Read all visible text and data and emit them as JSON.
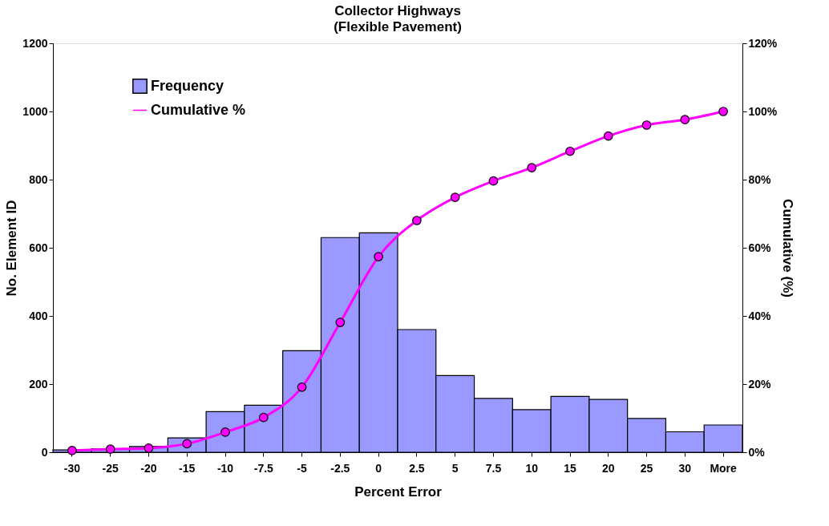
{
  "chart_data": {
    "type": "bar",
    "title": "Collector Highways",
    "subtitle": "(Flexible Pavement)",
    "xlabel": "Percent Error",
    "ylabel": "No. Element ID",
    "y2label": "Cumulative (%)",
    "categories": [
      "-30",
      "-25",
      "-20",
      "-15",
      "-10",
      "-7.5",
      "-5",
      "-2.5",
      "0",
      "2.5",
      "5",
      "7.5",
      "10",
      "15",
      "20",
      "25",
      "30",
      "More"
    ],
    "series": [
      {
        "name": "Frequency",
        "color": "#9999ff",
        "values": [
          7,
          10,
          17,
          42,
          119,
          138,
          298,
          630,
          644,
          360,
          225,
          158,
          125,
          164,
          155,
          99,
          60,
          80
        ]
      },
      {
        "name": "Cumulative %",
        "type": "line",
        "axis": "y2",
        "color": "#ff00ff",
        "marker": "circle",
        "values": [
          0.5,
          0.9,
          1.2,
          2.5,
          5.9,
          10.2,
          19.1,
          38.1,
          57.4,
          68.0,
          74.8,
          79.6,
          83.5,
          88.3,
          92.8,
          96.0,
          97.6,
          100
        ]
      }
    ],
    "ylim": [
      0,
      1200
    ],
    "yticks": [
      0,
      200,
      400,
      600,
      800,
      1000,
      1200
    ],
    "y2lim": [
      0,
      120
    ],
    "y2ticks": [
      {
        "value": 0,
        "label": "0%"
      },
      {
        "value": 20,
        "label": "20%"
      },
      {
        "value": 40,
        "label": "40%"
      },
      {
        "value": 60,
        "label": "60%"
      },
      {
        "value": 80,
        "label": "80%"
      },
      {
        "value": 100,
        "label": "100%"
      },
      {
        "value": 120,
        "label": "120%"
      }
    ],
    "grid": false,
    "legend": "top left"
  }
}
